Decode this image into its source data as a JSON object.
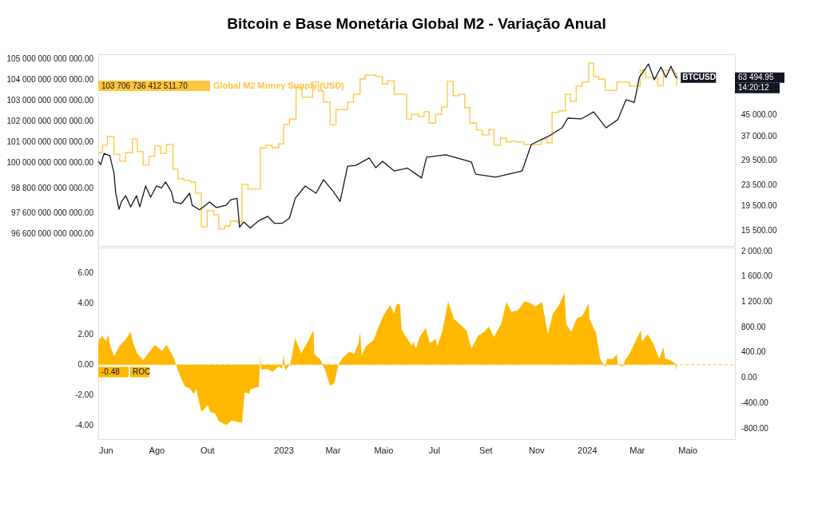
{
  "chart_data": [
    {
      "type": "line",
      "title": "Bitcoin e Base Monetária Global M2 - Variação Anual",
      "legend": false,
      "grid": false,
      "tick_labels": "y",
      "log": "y2",
      "xlim": [
        "2022-05-23",
        "2024-06-27"
      ],
      "ylim": [
        96020000000000.0,
        105230000000000.0
      ],
      "yticks": [
        {
          "value": 105000000000000.0,
          "label": "105 000 000 000 000.00"
        },
        {
          "value": 104000000000000.0,
          "label": "104 000 000 000 000.00"
        },
        {
          "value": 103000000000000.0,
          "label": "103 000 000 000 000.00"
        },
        {
          "value": 102000000000000.0,
          "label": "102 000 000 000 000.00"
        },
        {
          "value": 101000000000000.0,
          "label": "101 000 000 000 000.00"
        },
        {
          "value": 100000000000000.0,
          "label": "100 000 000 000 000.00"
        },
        {
          "value": 98800000000000.0,
          "label": "98 800 000 000 000.00"
        },
        {
          "value": 97600000000000.0,
          "label": "97 600 000 000 000.00"
        },
        {
          "value": 96600000000000.0,
          "label": "96 600 000 000 000.00"
        }
      ],
      "y2lim": [
        13480,
        78700
      ],
      "y2ticks": [
        {
          "value": 45000,
          "label": "45 000.00"
        },
        {
          "value": 37000,
          "label": "37 000.00"
        },
        {
          "value": 29500,
          "label": "29 500.00"
        },
        {
          "value": 23500,
          "label": "23 500.00"
        },
        {
          "value": 19500,
          "label": "19 500.00"
        },
        {
          "value": 15500,
          "label": "15 500.00"
        }
      ],
      "annotations": [
        "103 706 736 412 511.70",
        "63 494.95",
        "14:20:12"
      ],
      "series": [
        {
          "name": "Global M2 Money Supply (USD)",
          "type": "step",
          "color": "#ffc53d",
          "x": [
            "2022-05-23",
            "2022-05-28",
            "2022-06-03",
            "2022-06-11",
            "2022-06-18",
            "2022-06-25",
            "2022-07-03",
            "2022-07-09",
            "2022-07-16",
            "2022-07-23",
            "2022-07-30",
            "2022-08-06",
            "2022-08-13",
            "2022-08-21",
            "2022-08-27",
            "2022-09-03",
            "2022-09-11",
            "2022-09-17",
            "2022-09-24",
            "2022-10-01",
            "2022-10-09",
            "2022-10-15",
            "2022-10-22",
            "2022-10-29",
            "2022-11-07",
            "2022-11-12",
            "2022-11-19",
            "2022-12-04",
            "2022-12-11",
            "2022-12-18",
            "2022-12-26",
            "2023-01-01",
            "2023-01-08",
            "2023-01-16",
            "2023-01-23",
            "2023-02-05",
            "2023-02-12",
            "2023-02-18",
            "2023-02-26",
            "2023-03-05",
            "2023-03-19",
            "2023-03-26",
            "2023-04-03",
            "2023-04-09",
            "2023-04-22",
            "2023-04-30",
            "2023-05-06",
            "2023-05-14",
            "2023-05-29",
            "2023-06-04",
            "2023-06-12",
            "2023-06-19",
            "2023-06-25",
            "2023-07-03",
            "2023-07-10",
            "2023-07-17",
            "2023-07-24",
            "2023-07-31",
            "2023-08-07",
            "2023-08-13",
            "2023-08-21",
            "2023-08-28",
            "2023-09-05",
            "2023-09-11",
            "2023-09-19",
            "2023-09-26",
            "2023-10-02",
            "2023-10-09",
            "2023-10-17",
            "2023-11-07",
            "2023-11-14",
            "2023-11-20",
            "2023-11-28",
            "2023-12-06",
            "2023-12-12",
            "2023-12-19",
            "2023-12-26",
            "2024-01-03",
            "2024-01-09",
            "2024-01-15",
            "2024-01-23",
            "2024-02-06",
            "2024-02-21",
            "2024-03-05",
            "2024-03-12",
            "2024-03-26",
            "2024-04-02",
            "2024-04-15",
            "2024-04-18"
          ],
          "values": [
            100510000000000.0,
            100860000000000.0,
            101280000000000.0,
            100430000000000.0,
            100090000000000.0,
            100510000000000.0,
            101160000000000.0,
            100550000000000.0,
            99900000000000.0,
            100320000000000.0,
            100820000000000.0,
            100470000000000.0,
            100900000000000.0,
            99710000000000.0,
            99250000000000.0,
            99170000000000.0,
            99090000000000.0,
            98560000000000.0,
            96940000000000.0,
            97710000000000.0,
            97520000000000.0,
            96830000000000.0,
            96980000000000.0,
            97210000000000.0,
            97170000000000.0,
            98980000000000.0,
            98750000000000.0,
            100740000000000.0,
            100860000000000.0,
            100740000000000.0,
            100930000000000.0,
            101850000000000.0,
            102120000000000.0,
            103660000000000.0,
            103160000000000.0,
            103890000000000.0,
            103470000000000.0,
            102930000000000.0,
            101850000000000.0,
            102580000000000.0,
            102930000000000.0,
            103310000000000.0,
            104040000000000.0,
            104230000000000.0,
            104160000000000.0,
            103810000000000.0,
            103960000000000.0,
            103310000000000.0,
            102120000000000.0,
            102350000000000.0,
            102240000000000.0,
            102470000000000.0,
            101930000000000.0,
            102350000000000.0,
            102700000000000.0,
            103930000000000.0,
            103240000000000.0,
            103310000000000.0,
            102660000000000.0,
            101930000000000.0,
            101590000000000.0,
            101360000000000.0,
            101620000000000.0,
            100860000000000.0,
            101200000000000.0,
            101010000000000.0,
            101050000000000.0,
            101010000000000.0,
            100900000000000.0,
            101160000000000.0,
            100970000000000.0,
            102430000000000.0,
            102510000000000.0,
            103310000000000.0,
            102970000000000.0,
            103700000000000.0,
            103890000000000.0,
            104810000000000.0,
            104160000000000.0,
            104040000000000.0,
            103500000000000.0,
            103890000000000.0,
            103700000000000.0,
            104460000000000.0,
            104120000000000.0,
            103730000000000.0,
            104460000000000.0,
            104310000000000.0,
            103710000000000.0
          ]
        },
        {
          "name": "BTCUSD",
          "axis": "y2",
          "color": "#131722",
          "x": [
            "2022-05-23",
            "2022-05-26",
            "2022-05-30",
            "2022-06-06",
            "2022-06-11",
            "2022-06-13",
            "2022-06-17",
            "2022-06-20",
            "2022-06-25",
            "2022-07-01",
            "2022-07-08",
            "2022-07-12",
            "2022-07-19",
            "2022-07-25",
            "2022-08-01",
            "2022-08-07",
            "2022-08-12",
            "2022-08-19",
            "2022-08-22",
            "2022-08-31",
            "2022-09-10",
            "2022-09-13",
            "2022-09-22",
            "2022-10-04",
            "2022-10-12",
            "2022-10-24",
            "2022-10-29",
            "2022-11-06",
            "2022-11-09",
            "2022-11-14",
            "2022-11-22",
            "2022-12-02",
            "2022-12-13",
            "2022-12-21",
            "2022-12-30",
            "2023-01-08",
            "2023-01-15",
            "2023-01-27",
            "2023-02-09",
            "2023-02-18",
            "2023-03-02",
            "2023-03-10",
            "2023-03-19",
            "2023-03-29",
            "2023-04-14",
            "2023-04-22",
            "2023-04-30",
            "2023-05-14",
            "2023-05-30",
            "2023-06-16",
            "2023-06-22",
            "2023-07-15",
            "2023-08-15",
            "2023-08-20",
            "2023-09-13",
            "2023-10-15",
            "2023-10-26",
            "2023-11-17",
            "2023-12-02",
            "2023-12-09",
            "2023-12-25",
            "2024-01-09",
            "2024-01-24",
            "2024-02-07",
            "2024-02-17",
            "2024-02-27",
            "2024-03-04",
            "2024-03-15",
            "2024-03-22",
            "2024-03-30",
            "2024-04-05",
            "2024-04-11",
            "2024-04-17",
            "2024-04-19"
          ],
          "values": [
            29400,
            28500,
            31600,
            30900,
            26300,
            21900,
            18900,
            20300,
            21400,
            19300,
            21400,
            19300,
            23400,
            21100,
            23400,
            23000,
            24300,
            22200,
            20200,
            19900,
            21900,
            19600,
            18800,
            20200,
            19200,
            19600,
            20600,
            20900,
            16000,
            16800,
            15900,
            17000,
            17700,
            16600,
            16600,
            17400,
            20900,
            23400,
            21900,
            24800,
            22200,
            20300,
            28100,
            28300,
            30300,
            27700,
            29400,
            26900,
            27600,
            25200,
            30500,
            31200,
            29200,
            26100,
            25400,
            26900,
            34300,
            37200,
            40000,
            43700,
            43400,
            46300,
            40000,
            43100,
            51800,
            50600,
            63600,
            72000,
            62200,
            70000,
            63600,
            70500,
            63600,
            63495
          ]
        }
      ]
    },
    {
      "type": "area",
      "legend": "left",
      "grid": false,
      "xlim": [
        "2022-05-23",
        "2024-06-27"
      ],
      "xticks": [
        {
          "value": "2022-06-01",
          "label": "Jun"
        },
        {
          "value": "2022-08-01",
          "label": "Ago"
        },
        {
          "value": "2022-10-01",
          "label": "Out"
        },
        {
          "value": "2023-01-01",
          "label": "2023"
        },
        {
          "value": "2023-03-01",
          "label": "Mar"
        },
        {
          "value": "2023-05-01",
          "label": "Maio"
        },
        {
          "value": "2023-07-01",
          "label": "Jul"
        },
        {
          "value": "2023-09-01",
          "label": "Set"
        },
        {
          "value": "2023-11-01",
          "label": "Nov"
        },
        {
          "value": "2024-01-01",
          "label": "2024"
        },
        {
          "value": "2024-03-01",
          "label": "Mar"
        },
        {
          "value": "2024-05-01",
          "label": "Maio"
        }
      ],
      "ylim": [
        -4.87,
        7.67
      ],
      "yticks": [
        {
          "value": 6,
          "label": "6.00"
        },
        {
          "value": 4,
          "label": "4.00"
        },
        {
          "value": 2,
          "label": "2.00"
        },
        {
          "value": 0,
          "label": "0.00"
        },
        {
          "value": -2,
          "label": "-2.00"
        },
        {
          "value": -4,
          "label": "-4.00"
        }
      ],
      "y2lim": [
        -970,
        2060
      ],
      "y2ticks": [
        {
          "value": 2000,
          "label": "2 000.00"
        },
        {
          "value": 1600,
          "label": "1 600.00"
        },
        {
          "value": 1200,
          "label": "1 200.00"
        },
        {
          "value": 800,
          "label": "800.00"
        },
        {
          "value": 400,
          "label": "400.00"
        },
        {
          "value": 0,
          "label": "0.00"
        },
        {
          "value": -400,
          "label": "-400.00"
        },
        {
          "value": -800,
          "label": "-800.00"
        }
      ],
      "ref_lines": [
        {
          "axis": "y",
          "value": 0,
          "color": "#ffc53d",
          "line_style": "dashed"
        }
      ],
      "annotations": [
        "-0.48"
      ],
      "series": [
        {
          "name": "ROC",
          "color": "#ffb800",
          "x": [
            "2022-05-23",
            "2022-05-28",
            "2022-06-01",
            "2022-06-04",
            "2022-06-06",
            "2022-06-11",
            "2022-06-18",
            "2022-06-25",
            "2022-07-01",
            "2022-07-04",
            "2022-07-09",
            "2022-07-16",
            "2022-07-23",
            "2022-07-30",
            "2022-08-08",
            "2022-08-13",
            "2022-08-15",
            "2022-08-22",
            "2022-08-28",
            "2022-09-04",
            "2022-09-10",
            "2022-09-15",
            "2022-09-18",
            "2022-09-24",
            "2022-10-02",
            "2022-10-05",
            "2022-10-11",
            "2022-10-15",
            "2022-10-24",
            "2022-10-30",
            "2022-11-07",
            "2022-11-12",
            "2022-11-15",
            "2022-11-21",
            "2022-11-22",
            "2022-12-02",
            "2022-12-04",
            "2022-12-05",
            "2022-12-12",
            "2022-12-19",
            "2022-12-26",
            "2022-12-30",
            "2023-01-01",
            "2023-01-03",
            "2023-01-09",
            "2023-01-15",
            "2023-01-22",
            "2023-01-30",
            "2023-02-06",
            "2023-02-07",
            "2023-02-14",
            "2023-02-20",
            "2023-02-26",
            "2023-03-03",
            "2023-03-08",
            "2023-03-13",
            "2023-03-21",
            "2023-03-27",
            "2023-04-01",
            "2023-04-03",
            "2023-04-05",
            "2023-04-10",
            "2023-04-19",
            "2023-04-25",
            "2023-05-01",
            "2023-05-09",
            "2023-05-14",
            "2023-05-17",
            "2023-05-21",
            "2023-05-23",
            "2023-06-04",
            "2023-06-06",
            "2023-06-09",
            "2023-06-14",
            "2023-06-21",
            "2023-06-26",
            "2023-07-03",
            "2023-07-05",
            "2023-07-11",
            "2023-07-18",
            "2023-07-25",
            "2023-08-03",
            "2023-08-09",
            "2023-08-15",
            "2023-08-23",
            "2023-08-30",
            "2023-09-05",
            "2023-09-11",
            "2023-09-20",
            "2023-09-26",
            "2023-10-02",
            "2023-10-10",
            "2023-10-18",
            "2023-10-24",
            "2023-10-31",
            "2023-11-08",
            "2023-11-15",
            "2023-11-21",
            "2023-11-28",
            "2023-12-05",
            "2023-12-07",
            "2023-12-13",
            "2023-12-20",
            "2023-12-26",
            "2024-01-03",
            "2024-01-04",
            "2024-01-12",
            "2024-01-17",
            "2024-01-23",
            "2024-01-25",
            "2024-02-01",
            "2024-02-06",
            "2024-02-07",
            "2024-02-13",
            "2024-02-16",
            "2024-02-22",
            "2024-03-02",
            "2024-03-06",
            "2024-03-07",
            "2024-03-14",
            "2024-03-21",
            "2024-03-28",
            "2024-04-02",
            "2024-04-04",
            "2024-04-10",
            "2024-04-16",
            "2024-04-18"
          ],
          "values": [
            1.55,
            1.9,
            1.55,
            1.95,
            1.35,
            0.55,
            1.25,
            1.65,
            2.15,
            1.4,
            0.75,
            0.3,
            0.8,
            1.3,
            0.9,
            1.3,
            1.15,
            0.45,
            -0.55,
            -1.4,
            -1.55,
            -1.9,
            -1.6,
            -3.1,
            -2.65,
            -3.1,
            -3.2,
            -3.7,
            -3.95,
            -3.65,
            -3.75,
            -3.8,
            -1.8,
            -1.9,
            -1.6,
            -1.45,
            0.55,
            -0.33,
            -0.27,
            -0.45,
            -0.1,
            -0.27,
            0.7,
            -0.4,
            0.05,
            1.75,
            0.75,
            1.5,
            2.25,
            0.7,
            0.35,
            -0.35,
            -1.4,
            -1.2,
            0.0,
            0.45,
            0.85,
            0.7,
            1.4,
            2.15,
            0.6,
            1.2,
            1.6,
            2.45,
            3.2,
            3.9,
            3.35,
            4.0,
            3.95,
            2.3,
            1.25,
            1.5,
            1.05,
            1.85,
            2.4,
            1.4,
            1.7,
            1.2,
            2.2,
            4.15,
            3.0,
            2.55,
            2.25,
            1.05,
            1.9,
            2.15,
            2.5,
            1.8,
            2.7,
            4.1,
            3.45,
            3.55,
            4.15,
            4.05,
            3.8,
            4.1,
            2.0,
            3.35,
            3.85,
            4.7,
            2.65,
            2.15,
            3.05,
            3.15,
            4.0,
            3.0,
            2.05,
            0.35,
            -0.15,
            0.4,
            0.35,
            0.7,
            0.0,
            -0.1,
            0.3,
            0.8,
            1.85,
            2.25,
            1.5,
            2.0,
            1.35,
            0.4,
            1.15,
            0.4,
            0.3,
            0.1,
            -0.48
          ]
        }
      ]
    }
  ]
}
